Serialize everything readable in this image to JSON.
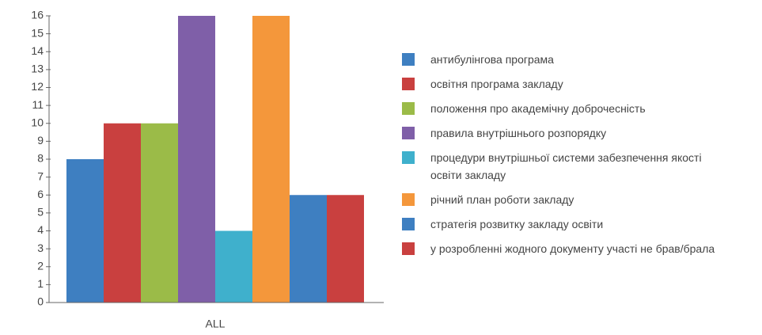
{
  "chart_data": {
    "type": "bar",
    "categories": [
      "ALL"
    ],
    "series": [
      {
        "name": "антибулінгова програма",
        "color": "#3e7fc1",
        "values": [
          8
        ]
      },
      {
        "name": "освітня програма закладу",
        "color": "#c9403f",
        "values": [
          10
        ]
      },
      {
        "name": "положення про академічну доброчесність",
        "color": "#9bbb48",
        "values": [
          10
        ]
      },
      {
        "name": "правила внутрішнього розпорядку",
        "color": "#7f5fa8",
        "values": [
          16
        ]
      },
      {
        "name": "процедури внутрішньої системи забезпечення якості освіти закладу",
        "color": "#3fb0cc",
        "values": [
          4
        ]
      },
      {
        "name": "річний план роботи закладу",
        "color": "#f4973b",
        "values": [
          16
        ]
      },
      {
        "name": "стратегія розвитку закладу освіти",
        "color": "#3e7fc1",
        "values": [
          6
        ]
      },
      {
        "name": "у розробленні жодного документу участі не брав/брала",
        "color": "#c9403f",
        "values": [
          6
        ]
      }
    ],
    "ylim": [
      0,
      16
    ],
    "yticks": [
      0,
      1,
      2,
      3,
      4,
      5,
      6,
      7,
      8,
      9,
      10,
      11,
      12,
      13,
      14,
      15,
      16
    ],
    "grid": false,
    "legend": "right"
  }
}
